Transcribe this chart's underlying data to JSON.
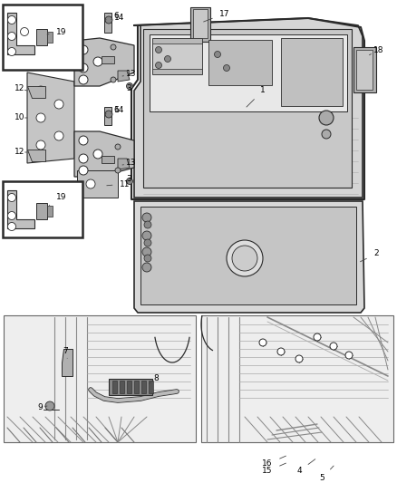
{
  "bg_color": "#f0f0f0",
  "fig_width": 4.38,
  "fig_height": 5.33,
  "dpi": 100,
  "line_color": "#2a2a2a",
  "label_fontsize": 6.5,
  "fill_light": "#c8c8c8",
  "fill_mid": "#b0b0b0",
  "fill_white": "#ffffff",
  "fill_dark": "#888888"
}
